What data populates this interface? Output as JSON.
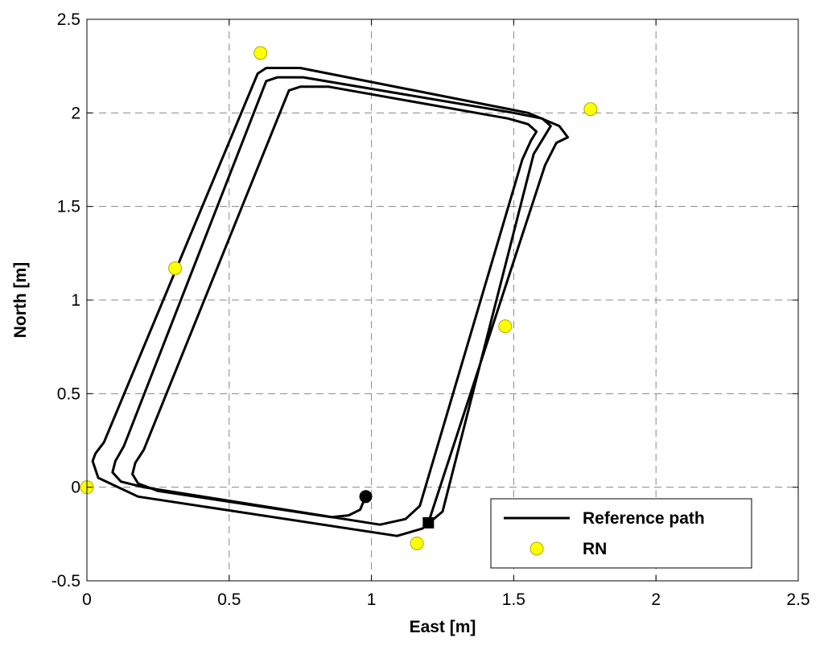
{
  "chart_data": {
    "type": "line",
    "title": "",
    "xlabel": "East [m]",
    "ylabel": "North [m]",
    "xlim": [
      0,
      2.5
    ],
    "ylim": [
      -0.5,
      2.5
    ],
    "x_ticks": [
      0,
      0.5,
      1,
      1.5,
      2,
      2.5
    ],
    "x_tick_labels": [
      "0",
      "0.5",
      "1",
      "1.5",
      "2",
      "2.5"
    ],
    "y_ticks": [
      -0.5,
      0,
      0.5,
      1,
      1.5,
      2,
      2.5
    ],
    "y_tick_labels": [
      "-0.5",
      "0",
      "0.5",
      "1",
      "1.5",
      "2",
      "2.5"
    ],
    "grid": true,
    "legend_position": "bottom-right",
    "series": [
      {
        "name": "Reference path",
        "type": "line",
        "color": "#000000",
        "x": [
          0.98,
          0.96,
          0.92,
          0.86,
          0.25,
          0.18,
          0.16,
          0.17,
          0.2,
          0.71,
          0.75,
          0.85,
          1.48,
          1.55,
          1.58,
          1.56,
          1.53,
          1.17,
          1.12,
          1.03,
          0.2,
          0.12,
          0.09,
          0.1,
          0.13,
          0.63,
          0.67,
          0.76,
          1.5,
          1.6,
          1.63,
          1.61,
          1.57,
          1.25,
          1.18,
          1.09,
          0.18,
          0.04,
          0.02,
          0.03,
          0.06,
          0.6,
          0.63,
          0.75,
          1.55,
          1.66,
          1.69,
          1.65,
          1.61,
          1.2
        ],
        "y": [
          -0.05,
          -0.12,
          -0.15,
          -0.16,
          -0.02,
          0.02,
          0.07,
          0.13,
          0.2,
          2.12,
          2.14,
          2.14,
          1.97,
          1.94,
          1.9,
          1.85,
          1.75,
          -0.1,
          -0.17,
          -0.2,
          0.0,
          0.03,
          0.08,
          0.14,
          0.22,
          2.17,
          2.19,
          2.19,
          2.0,
          1.97,
          1.93,
          1.88,
          1.78,
          -0.13,
          -0.22,
          -0.26,
          -0.05,
          0.05,
          0.14,
          0.18,
          0.24,
          2.21,
          2.24,
          2.24,
          2.0,
          1.93,
          1.87,
          1.84,
          1.72,
          -0.19
        ]
      },
      {
        "name": "RN",
        "type": "scatter",
        "color": "#ffff00",
        "x": [
          0.0,
          0.31,
          0.61,
          1.16,
          1.47,
          1.77
        ],
        "y": [
          0.0,
          1.17,
          2.32,
          -0.3,
          0.86,
          2.02
        ]
      }
    ],
    "markers": {
      "start": {
        "shape": "circle",
        "x": 0.98,
        "y": -0.05
      },
      "end": {
        "shape": "square",
        "x": 1.2,
        "y": -0.19
      }
    }
  }
}
